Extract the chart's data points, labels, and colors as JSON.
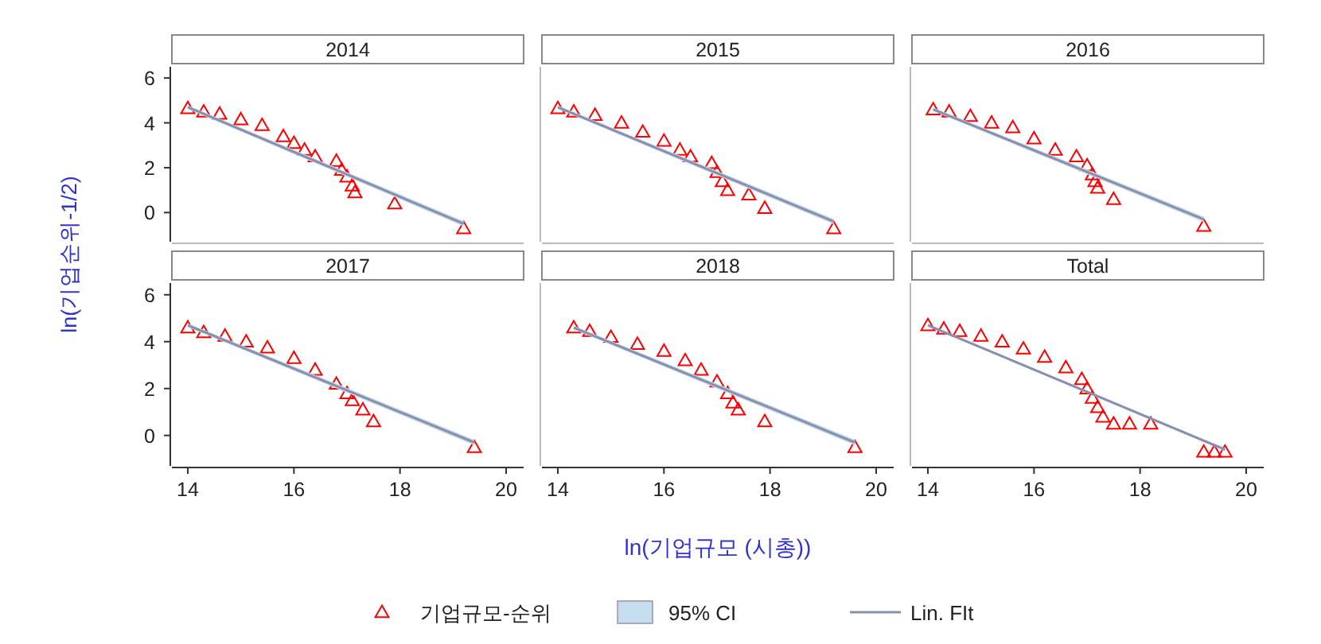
{
  "chart_data": [
    {
      "type": "scatter",
      "title": "2014",
      "ylabel": "ln(기업순위-1/2)",
      "xlim": [
        13.7,
        20.33
      ],
      "ylim": [
        -1.3,
        6.5
      ],
      "yticks": [
        0,
        2,
        4,
        6
      ],
      "tick_labels": "y",
      "series": [
        {
          "marker": "triangle",
          "color": "#ff0000",
          "x": [
            14.0,
            14.3,
            14.6,
            15.0,
            15.4,
            15.8,
            16.0,
            16.2,
            16.4,
            16.8,
            16.9,
            17.0,
            17.1,
            17.15,
            17.9,
            19.2
          ],
          "values": [
            4.65,
            4.5,
            4.4,
            4.15,
            3.9,
            3.4,
            3.1,
            2.8,
            2.5,
            2.3,
            1.9,
            1.6,
            1.2,
            0.9,
            0.4,
            -0.7
          ]
        },
        {
          "type": "line",
          "marker": "none",
          "color": "#8a8fae",
          "x": [
            14.0,
            19.2
          ],
          "values": [
            4.7,
            -0.5
          ],
          "lower": [
            4.62,
            -0.62
          ],
          "upper": [
            4.78,
            -0.38
          ]
        }
      ]
    },
    {
      "type": "scatter",
      "title": "2015",
      "xlim": [
        13.7,
        20.33
      ],
      "ylim": [
        -1.3,
        6.5
      ],
      "tick_labels": false,
      "series": [
        {
          "marker": "triangle",
          "color": "#ff0000",
          "x": [
            14.0,
            14.3,
            14.7,
            15.2,
            15.6,
            16.0,
            16.3,
            16.5,
            16.9,
            17.0,
            17.1,
            17.2,
            17.6,
            17.9,
            19.2
          ],
          "values": [
            4.65,
            4.5,
            4.35,
            4.0,
            3.6,
            3.2,
            2.8,
            2.5,
            2.2,
            1.8,
            1.4,
            1.0,
            0.8,
            0.2,
            -0.7
          ]
        },
        {
          "type": "line",
          "marker": "none",
          "color": "#8a8fae",
          "x": [
            14.0,
            19.2
          ],
          "values": [
            4.7,
            -0.4
          ],
          "lower": [
            4.62,
            -0.52
          ],
          "upper": [
            4.78,
            -0.28
          ]
        }
      ]
    },
    {
      "type": "scatter",
      "title": "2016",
      "xlim": [
        13.7,
        20.33
      ],
      "ylim": [
        -1.3,
        6.5
      ],
      "tick_labels": false,
      "series": [
        {
          "marker": "triangle",
          "color": "#ff0000",
          "x": [
            14.1,
            14.4,
            14.8,
            15.2,
            15.6,
            16.0,
            16.4,
            16.8,
            17.0,
            17.1,
            17.15,
            17.2,
            17.5,
            19.2
          ],
          "values": [
            4.6,
            4.5,
            4.3,
            4.0,
            3.8,
            3.3,
            2.8,
            2.5,
            2.1,
            1.7,
            1.4,
            1.1,
            0.6,
            -0.6
          ]
        },
        {
          "type": "line",
          "marker": "none",
          "color": "#8a8fae",
          "x": [
            14.1,
            19.2
          ],
          "values": [
            4.6,
            -0.3
          ],
          "lower": [
            4.52,
            -0.42
          ],
          "upper": [
            4.68,
            -0.18
          ]
        }
      ]
    },
    {
      "type": "scatter",
      "title": "2017",
      "xlim": [
        13.7,
        20.33
      ],
      "ylim": [
        -1.3,
        6.5
      ],
      "xticks": [
        14,
        16,
        18,
        20
      ],
      "yticks": [
        0,
        2,
        4,
        6
      ],
      "series": [
        {
          "marker": "triangle",
          "color": "#ff0000",
          "x": [
            14.0,
            14.3,
            14.7,
            15.1,
            15.5,
            16.0,
            16.4,
            16.8,
            17.0,
            17.1,
            17.3,
            17.5,
            19.4
          ],
          "values": [
            4.6,
            4.4,
            4.25,
            4.0,
            3.75,
            3.3,
            2.8,
            2.2,
            1.8,
            1.5,
            1.1,
            0.6,
            -0.5
          ]
        },
        {
          "type": "line",
          "marker": "none",
          "color": "#8a8fae",
          "x": [
            14.0,
            19.4
          ],
          "values": [
            4.7,
            -0.3
          ],
          "lower": [
            4.62,
            -0.42
          ],
          "upper": [
            4.78,
            -0.18
          ]
        }
      ]
    },
    {
      "type": "scatter",
      "title": "2018",
      "xlabel": "ln(기업규모 (시총))",
      "legend": "bottom",
      "annotations": [
        "95% CI"
      ],
      "xlim": [
        13.7,
        20.33
      ],
      "ylim": [
        -1.3,
        6.5
      ],
      "xticks": [
        14,
        16,
        18,
        20
      ],
      "tick_labels": "x",
      "series": [
        {
          "name": "기업규모-순위",
          "marker": "triangle",
          "color": "#ff0000",
          "x": [
            14.3,
            14.6,
            15.0,
            15.5,
            16.0,
            16.4,
            16.7,
            17.0,
            17.2,
            17.3,
            17.4,
            17.9,
            19.6
          ],
          "values": [
            4.6,
            4.45,
            4.2,
            3.9,
            3.6,
            3.2,
            2.8,
            2.3,
            1.8,
            1.4,
            1.1,
            0.6,
            -0.5
          ]
        },
        {
          "name": "Lin. FIt",
          "type": "line",
          "marker": "none",
          "color": "#8a8fae",
          "x": [
            14.3,
            19.6
          ],
          "values": [
            4.6,
            -0.3
          ],
          "lower": [
            4.52,
            -0.42
          ],
          "upper": [
            4.68,
            -0.18
          ]
        }
      ]
    },
    {
      "type": "scatter",
      "title": "Total",
      "xlim": [
        13.7,
        20.33
      ],
      "ylim": [
        -1.3,
        6.5
      ],
      "xticks": [
        14,
        16,
        18,
        20
      ],
      "tick_labels": "x",
      "series": [
        {
          "marker": "triangle",
          "color": "#ff0000",
          "x": [
            14.0,
            14.3,
            14.6,
            15.0,
            15.4,
            15.8,
            16.2,
            16.6,
            16.9,
            17.0,
            17.1,
            17.2,
            17.3,
            17.5,
            17.8,
            18.2,
            19.2,
            19.4,
            19.6
          ],
          "values": [
            4.7,
            4.55,
            4.45,
            4.25,
            4.0,
            3.7,
            3.35,
            2.9,
            2.4,
            2.0,
            1.6,
            1.2,
            0.8,
            0.5,
            0.5,
            0.5,
            -0.7,
            -0.7,
            -0.7
          ]
        },
        {
          "type": "line",
          "marker": "none",
          "color": "#8a8fae",
          "x": [
            14.0,
            19.6
          ],
          "values": [
            4.7,
            -0.6
          ],
          "lower": [
            4.66,
            -0.66
          ],
          "upper": [
            4.74,
            -0.54
          ]
        }
      ]
    }
  ]
}
